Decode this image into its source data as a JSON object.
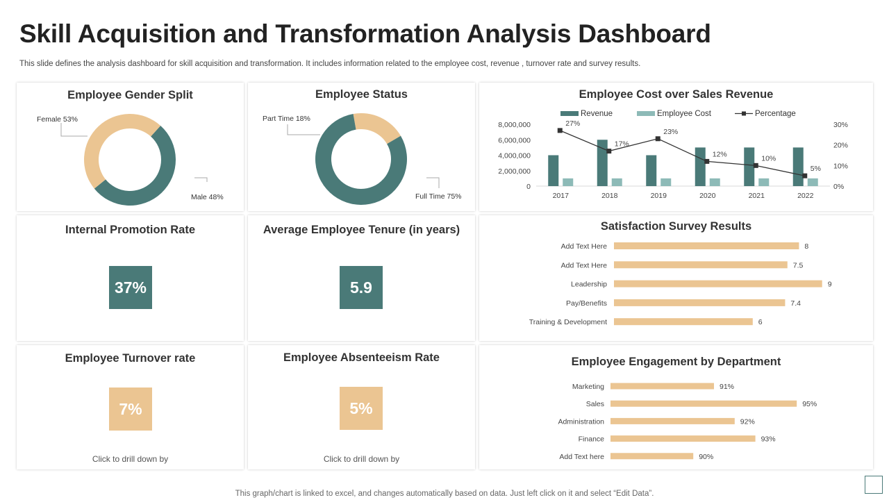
{
  "header": {
    "title": "Skill Acquisition and Transformation Analysis Dashboard",
    "subtitle": "This slide defines the  analysis dashboard for skill acquisition and transformation. It includes information related to the  employee cost, revenue , turnover rate and survey results."
  },
  "colors": {
    "teal": "#4a7a78",
    "sand": "#ebc592",
    "light_teal": "#8dbab7",
    "bar": "#ebc592"
  },
  "gender_split": {
    "title": "Employee Gender Split",
    "labels": {
      "female": "Female  53%",
      "male": "Male  48%"
    }
  },
  "employee_status": {
    "title": "Employee Status",
    "labels": {
      "part_time": "Part Time  18%",
      "full_time": "Full Time  75%"
    }
  },
  "promotion": {
    "title": "Internal Promotion Rate",
    "value": "37%"
  },
  "tenure": {
    "title": "Average Employee Tenure (in years)",
    "value": "5.9"
  },
  "turnover": {
    "title": "Employee Turnover rate",
    "value": "7%",
    "drill": "Click to  drill down by"
  },
  "absenteeism": {
    "title": "Employee Absenteeism Rate",
    "value": "5%",
    "drill": "Click to  drill down by"
  },
  "cost_chart": {
    "title": "Employee Cost over Sales Revenue"
  },
  "survey_chart": {
    "title": "Satisfaction  Survey Results"
  },
  "engagement_chart": {
    "title": "Employee Engagement by Department"
  },
  "footer": "This graph/chart is linked to excel,  and changes automatically based on data. Just left click on it and select “Edit Data”.",
  "chart_data": [
    {
      "id": "gender",
      "type": "pie",
      "title": "Employee Gender Split",
      "categories": [
        "Female",
        "Male"
      ],
      "values": [
        53,
        48
      ],
      "value_labels": [
        "53%",
        "48%"
      ]
    },
    {
      "id": "status",
      "type": "pie",
      "title": "Employee Status",
      "categories": [
        "Part Time",
        "Full Time"
      ],
      "values": [
        18,
        75
      ],
      "value_labels": [
        "18%",
        "75%"
      ]
    },
    {
      "id": "cost",
      "type": "bar",
      "title": "Employee Cost over Sales Revenue",
      "categories": [
        "2017",
        "2018",
        "2019",
        "2020",
        "2021",
        "2022"
      ],
      "series": [
        {
          "name": "Revenue",
          "values": [
            4000000,
            6000000,
            4000000,
            5000000,
            5000000,
            5000000
          ],
          "color": "#4a7a78"
        },
        {
          "name": "Employee Cost",
          "values": [
            1000000,
            1000000,
            1000000,
            1000000,
            1000000,
            1000000
          ],
          "color": "#8dbab7"
        },
        {
          "name": "Percentage",
          "type": "line",
          "axis": "right",
          "values": [
            27,
            17,
            23,
            12,
            10,
            5
          ],
          "labels": [
            "27%",
            "17%",
            "23%",
            "12%",
            "10%",
            "5%"
          ],
          "color": "#333333"
        }
      ],
      "ylim": [
        0,
        8000000
      ],
      "yticks": [
        "0",
        "2,000,000",
        "4,000,000",
        "6,000,000",
        "8,000,000"
      ],
      "y2lim": [
        0,
        30
      ],
      "y2ticks": [
        "0%",
        "10%",
        "20%",
        "30%"
      ],
      "legend": "top"
    },
    {
      "id": "survey",
      "type": "bar",
      "orientation": "horizontal",
      "title": "Satisfaction  Survey Results",
      "categories": [
        "Add Text Here",
        "Add Text Here",
        "Leadership",
        "Pay/Benefits",
        "Training & Development"
      ],
      "values": [
        8,
        7.5,
        9,
        7.4,
        6
      ],
      "value_labels": [
        "8",
        "7.5",
        "9",
        "7.4",
        "6"
      ],
      "xlim": [
        0,
        10
      ]
    },
    {
      "id": "engagement",
      "type": "bar",
      "orientation": "horizontal",
      "title": "Employee Engagement by Department",
      "categories": [
        "Marketing",
        "Sales",
        "Administration",
        "Finance",
        "Add Text here"
      ],
      "values": [
        91,
        95,
        92,
        93,
        90
      ],
      "value_labels": [
        "91%",
        "95%",
        "92%",
        "93%",
        "90%"
      ],
      "xlim": [
        86,
        96
      ]
    }
  ]
}
